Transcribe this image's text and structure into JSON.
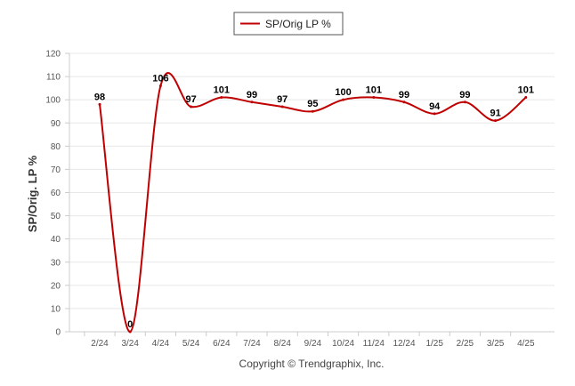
{
  "chart_data": {
    "type": "line",
    "categories": [
      "2/24",
      "3/24",
      "4/24",
      "5/24",
      "6/24",
      "7/24",
      "8/24",
      "9/24",
      "10/24",
      "11/24",
      "12/24",
      "1/25",
      "2/25",
      "3/25",
      "4/25"
    ],
    "series": [
      {
        "name": "SP/Orig LP %",
        "values": [
          98,
          0,
          106,
          97,
          101,
          99,
          97,
          95,
          100,
          101,
          99,
          94,
          99,
          91,
          101
        ],
        "color": "#c00000"
      }
    ],
    "ylabel": "SP/Orig. LP %",
    "xlabel": "",
    "ylim": [
      0,
      120
    ],
    "yticks": [
      0,
      10,
      20,
      30,
      40,
      50,
      60,
      70,
      80,
      90,
      100,
      110,
      120
    ],
    "grid": true,
    "legend_position": "top-center",
    "data_labels": true,
    "smooth": true
  },
  "footer": {
    "copyright": "Copyright © Trendgraphix, Inc."
  },
  "colors": {
    "line": "#c00000",
    "grid": "#e8e8e8",
    "axis": "#cccccc"
  }
}
